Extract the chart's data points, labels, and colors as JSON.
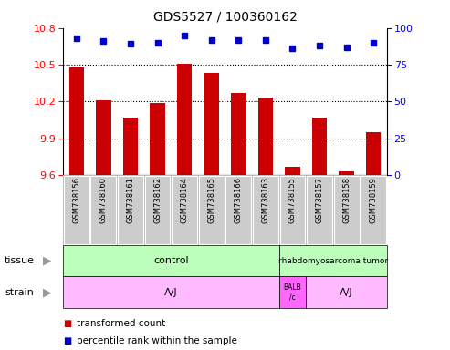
{
  "title": "GDS5527 / 100360162",
  "samples": [
    "GSM738156",
    "GSM738160",
    "GSM738161",
    "GSM738162",
    "GSM738164",
    "GSM738165",
    "GSM738166",
    "GSM738163",
    "GSM738155",
    "GSM738157",
    "GSM738158",
    "GSM738159"
  ],
  "transformed_counts": [
    10.48,
    10.21,
    10.07,
    10.19,
    10.51,
    10.43,
    10.27,
    10.23,
    9.67,
    10.07,
    9.63,
    9.95
  ],
  "percentile_ranks": [
    93,
    91,
    89,
    90,
    95,
    92,
    92,
    92,
    86,
    88,
    87,
    90
  ],
  "ylim_left": [
    9.6,
    10.8
  ],
  "ylim_right": [
    0,
    100
  ],
  "yticks_left": [
    9.6,
    9.9,
    10.2,
    10.5,
    10.8
  ],
  "yticks_right": [
    0,
    25,
    50,
    75,
    100
  ],
  "bar_color": "#cc0000",
  "dot_color": "#0000cc",
  "control_n": 8,
  "balb_n": 1,
  "tumor_n": 4,
  "aj2_n": 3,
  "tissue_control_color": "#bbffbb",
  "tissue_tumor_color": "#bbffbb",
  "strain_aj_color": "#ffbbff",
  "strain_balb_color": "#ff66ff",
  "sample_box_color": "#cccccc",
  "legend_bar_color": "#cc0000",
  "legend_dot_color": "#0000cc"
}
